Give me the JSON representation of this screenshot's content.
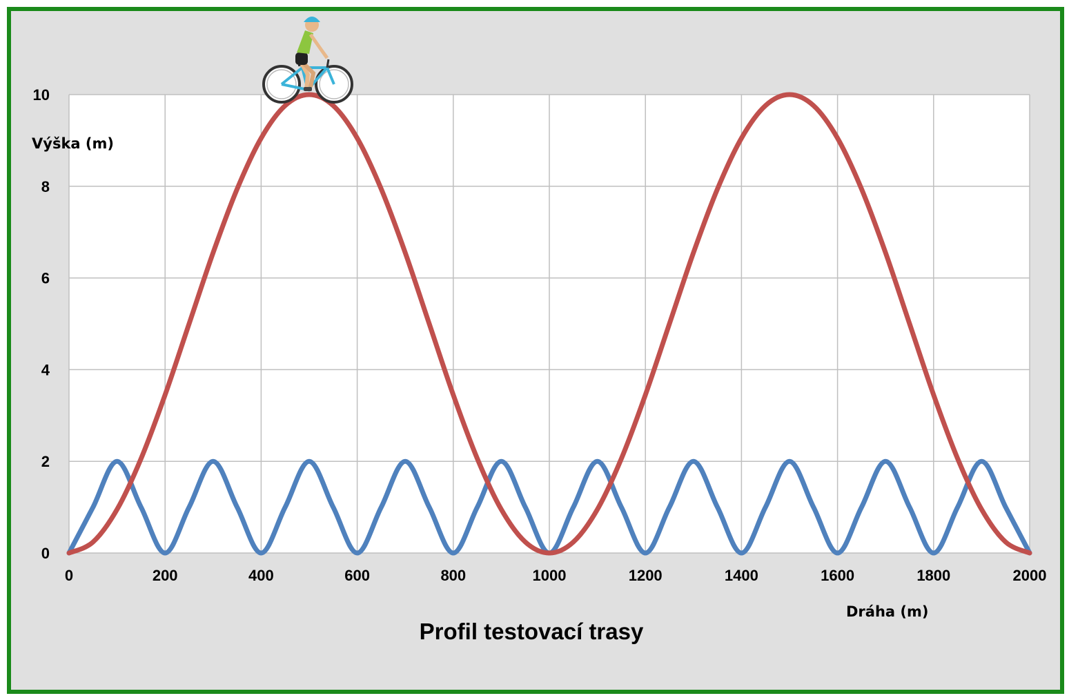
{
  "chart_data": {
    "type": "line",
    "title": "Profil testovací trasy",
    "xlabel": "Dráha (m)",
    "ylabel": "Výška (m)",
    "xlim": [
      0,
      2000
    ],
    "ylim": [
      0,
      10
    ],
    "x_ticks": [
      "0",
      "200",
      "400",
      "600",
      "800",
      "1000",
      "1200",
      "1400",
      "1600",
      "1800",
      "2000"
    ],
    "y_ticks": [
      "0",
      "2",
      "4",
      "6",
      "8",
      "10"
    ],
    "grid": true,
    "x": [
      0,
      50,
      100,
      150,
      200,
      250,
      300,
      350,
      400,
      450,
      500,
      550,
      600,
      650,
      700,
      750,
      800,
      850,
      900,
      950,
      1000,
      1050,
      1100,
      1150,
      1200,
      1250,
      1300,
      1350,
      1400,
      1450,
      1500,
      1550,
      1600,
      1650,
      1700,
      1750,
      1800,
      1850,
      1900,
      1950,
      2000
    ],
    "series": [
      {
        "color": "#c0504d",
        "values": [
          0,
          0.24,
          0.95,
          2.06,
          3.45,
          5.0,
          6.55,
          7.94,
          9.05,
          9.76,
          10,
          9.76,
          9.05,
          7.94,
          6.55,
          5.0,
          3.45,
          2.06,
          0.95,
          0.24,
          0,
          0.24,
          0.95,
          2.06,
          3.45,
          5.0,
          6.55,
          7.94,
          9.05,
          9.76,
          10,
          9.76,
          9.05,
          7.94,
          6.55,
          5.0,
          3.45,
          2.06,
          0.95,
          0.24,
          0
        ]
      },
      {
        "color": "#4f81bd",
        "values": [
          0,
          1,
          2,
          1,
          0,
          1,
          2,
          1,
          0,
          1,
          2,
          1,
          0,
          1,
          2,
          1,
          0,
          1,
          2,
          1,
          0,
          1,
          2,
          1,
          0,
          1,
          2,
          1,
          0,
          1,
          2,
          1,
          0,
          1,
          2,
          1,
          0,
          1,
          2,
          1,
          0
        ]
      }
    ]
  },
  "colors": {
    "frame_border": "#1a8a1a",
    "background": "#e0e0e0",
    "plot_area": "#ffffff",
    "grid": "#bfbfbf"
  },
  "icons": {
    "cyclist": "cyclist-icon"
  }
}
